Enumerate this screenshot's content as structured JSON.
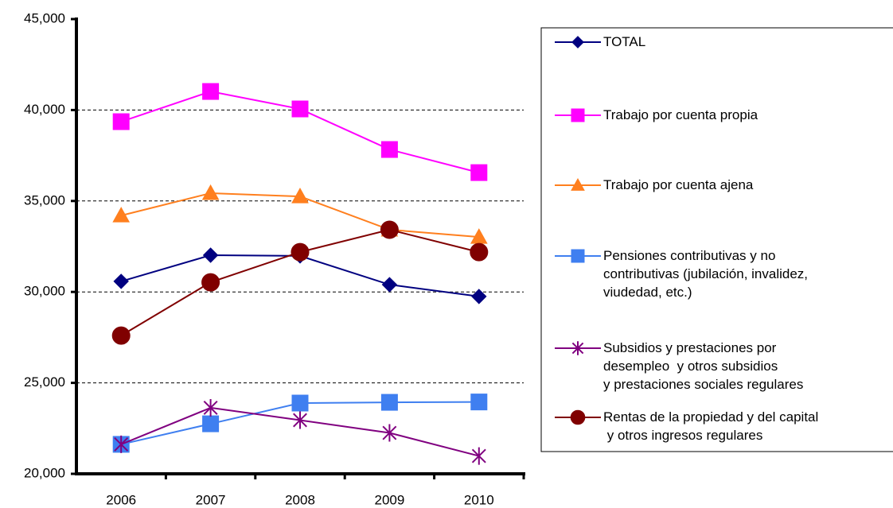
{
  "chart_data": {
    "type": "line",
    "categories": [
      "2006",
      "2007",
      "2008",
      "2009",
      "2010"
    ],
    "ylim": [
      20000,
      45000
    ],
    "yticks": [
      {
        "value": 20000,
        "label": "20,000"
      },
      {
        "value": 25000,
        "label": "25,000"
      },
      {
        "value": 30000,
        "label": "30,000"
      },
      {
        "value": 35000,
        "label": "35,000"
      },
      {
        "value": 40000,
        "label": "40,000"
      },
      {
        "value": 45000,
        "label": "45,000"
      }
    ],
    "grid": true,
    "legend": "right",
    "series": [
      {
        "name": "TOTAL",
        "color": "#000080",
        "marker": "diamond",
        "values": [
          30580,
          32020,
          31980,
          30400,
          29750
        ]
      },
      {
        "name": "Trabajo por cuenta propia",
        "color": "#ff00ff",
        "marker": "square",
        "values": [
          39360,
          41020,
          40060,
          37830,
          36560
        ]
      },
      {
        "name": "Trabajo por cuenta ajena",
        "color": "#ff7f1e",
        "marker": "triangle",
        "values": [
          34200,
          35430,
          35250,
          33420,
          33020
        ]
      },
      {
        "name": "Pensiones contributivas y no\ncontributivas (jubilación, invalidez,\nviudedad, etc.)",
        "color": "#3f7ff0",
        "marker": "square",
        "values": [
          21620,
          22750,
          23890,
          23930,
          23950
        ]
      },
      {
        "name": "Subsidios y prestaciones por\ndesempleo  y otros subsidios\ny prestaciones sociales regulares",
        "color": "#800080",
        "marker": "star",
        "values": [
          21620,
          23630,
          22950,
          22250,
          20980
        ]
      },
      {
        "name": "Rentas de la propiedad y del capital\n y otros ingresos regulares",
        "color": "#800000",
        "marker": "circle",
        "values": [
          27600,
          30530,
          32190,
          33420,
          32190
        ]
      }
    ]
  }
}
